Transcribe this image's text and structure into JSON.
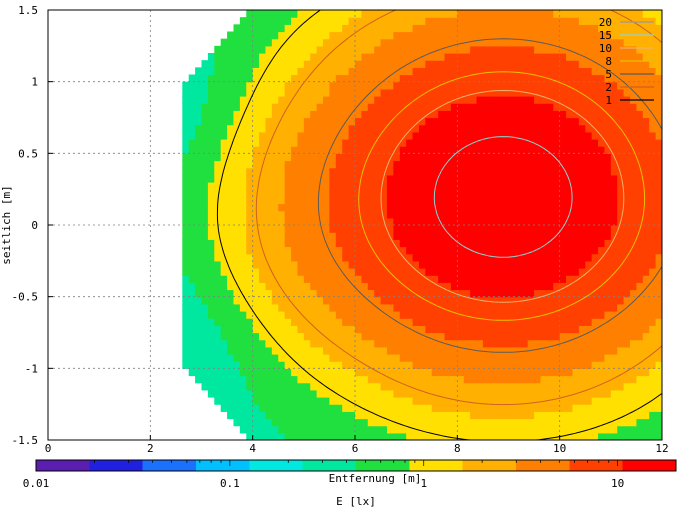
{
  "chart_data": {
    "type": "heatmap",
    "title": "",
    "xlabel": "Entfernung [m]",
    "ylabel": "seitlich [m]",
    "xlim": [
      0,
      12
    ],
    "ylim": [
      -1.5,
      1.5
    ],
    "x_ticks": [
      "0",
      "2",
      "4",
      "6",
      "8",
      "10",
      "12"
    ],
    "y_ticks": [
      "1.5",
      "1",
      "0.5",
      "0",
      "-0.5",
      "-1",
      "-1.5"
    ],
    "grid": true,
    "colorbar": {
      "label": "E [lx]",
      "scale": "log",
      "range": [
        0.01,
        20
      ],
      "ticks": [
        "0.01",
        "0.1",
        "1",
        "10"
      ]
    },
    "contour_legend": {
      "placement": "top-right",
      "levels": [
        {
          "label": "20",
          "color": "#9a9a9a"
        },
        {
          "label": "15",
          "color": "#8fd3d3"
        },
        {
          "label": "10",
          "color": "#f0b070"
        },
        {
          "label": "8",
          "color": "#e8c000"
        },
        {
          "label": "5",
          "color": "#5a5a5a"
        },
        {
          "label": "2",
          "color": "#d06020"
        },
        {
          "label": "1",
          "color": "#000000"
        }
      ]
    },
    "field": {
      "x_start": 2.65,
      "peak_center": [
        8.9,
        0.2
      ],
      "peak_value": 18,
      "palette": [
        "#5a1fb0",
        "#2020e0",
        "#1a70ff",
        "#00c0ff",
        "#00e8e0",
        "#00e8a0",
        "#20e040",
        "#ffe000",
        "#ffb000",
        "#ff8000",
        "#ff4000",
        "#ff0000"
      ]
    }
  }
}
